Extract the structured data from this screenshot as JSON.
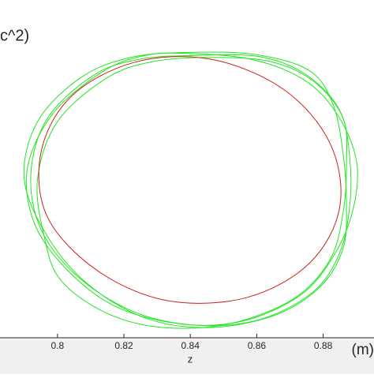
{
  "chart_data": {
    "type": "line",
    "ylabel": "c^2)",
    "xlabel": "z",
    "xlabel_unit": "(m)",
    "xlim": [
      0.7827,
      0.8953
    ],
    "ylim": [
      0,
      1
    ],
    "xticks": [
      0.8,
      0.82,
      0.84,
      0.86,
      0.88
    ],
    "closed": true,
    "series": [
      {
        "color": "#cc1f1a",
        "x": [
          0.885,
          0.876,
          0.857,
          0.833,
          0.812,
          0.797,
          0.795,
          0.804,
          0.823,
          0.846,
          0.868,
          0.882,
          0.885
        ],
        "values": [
          0.388,
          0.222,
          0.119,
          0.11,
          0.199,
          0.357,
          0.547,
          0.713,
          0.815,
          0.825,
          0.736,
          0.577,
          0.388
        ]
      },
      {
        "color": "#22e622",
        "x": [
          0.842,
          0.861,
          0.875,
          0.885,
          0.888,
          0.888,
          0.885,
          0.877,
          0.861,
          0.842,
          0.823,
          0.806,
          0.795,
          0.792,
          0.797,
          0.811,
          0.825,
          0.842
        ],
        "values": [
          0.836,
          0.832,
          0.778,
          0.673,
          0.533,
          0.393,
          0.252,
          0.136,
          0.054,
          0.037,
          0.077,
          0.182,
          0.322,
          0.486,
          0.65,
          0.778,
          0.825,
          0.836
        ]
      },
      {
        "color": "#22e622",
        "x": [
          0.838,
          0.858,
          0.874,
          0.884,
          0.89,
          0.889,
          0.883,
          0.873,
          0.856,
          0.838,
          0.818,
          0.803,
          0.793,
          0.791,
          0.799,
          0.814,
          0.826,
          0.838
        ],
        "values": [
          0.842,
          0.825,
          0.765,
          0.665,
          0.525,
          0.38,
          0.24,
          0.125,
          0.05,
          0.04,
          0.09,
          0.2,
          0.34,
          0.505,
          0.668,
          0.79,
          0.835,
          0.842
        ]
      },
      {
        "color": "#22e622",
        "x": [
          0.846,
          0.864,
          0.877,
          0.886,
          0.887,
          0.886,
          0.882,
          0.871,
          0.852,
          0.832,
          0.815,
          0.801,
          0.796,
          0.794,
          0.8,
          0.815,
          0.829,
          0.846
        ],
        "values": [
          0.83,
          0.818,
          0.76,
          0.65,
          0.51,
          0.37,
          0.23,
          0.115,
          0.042,
          0.03,
          0.072,
          0.17,
          0.3,
          0.47,
          0.64,
          0.77,
          0.818,
          0.83
        ]
      },
      {
        "color": "#22e622",
        "x": [
          0.84,
          0.86,
          0.876,
          0.883,
          0.886,
          0.887,
          0.886,
          0.879,
          0.865,
          0.845,
          0.826,
          0.809,
          0.797,
          0.79,
          0.794,
          0.807,
          0.822,
          0.84
        ],
        "values": [
          0.845,
          0.838,
          0.79,
          0.69,
          0.545,
          0.4,
          0.265,
          0.15,
          0.065,
          0.03,
          0.06,
          0.16,
          0.3,
          0.47,
          0.64,
          0.77,
          0.83,
          0.845
        ]
      }
    ]
  }
}
